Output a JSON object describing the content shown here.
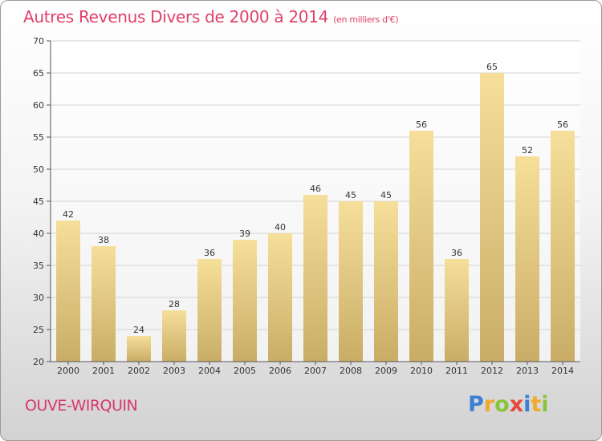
{
  "header": {
    "title": "Autres Revenus Divers de 2000 à 2014",
    "subtitle": "(en milliers d'€)"
  },
  "footer": {
    "location": "OUVE-WIRQUIN",
    "logo_letters": [
      "P",
      "r",
      "o",
      "x",
      "i",
      "t",
      "i"
    ],
    "logo_colors": [
      "#3d7fd0",
      "#f2a82a",
      "#8ac43e",
      "#e8483a",
      "#3d7fd0",
      "#f2a82a",
      "#8ac43e"
    ]
  },
  "chart_data": {
    "type": "bar",
    "title": "Autres Revenus Divers de 2000 à 2014",
    "subtitle": "(en milliers d'€)",
    "categories": [
      "2000",
      "2001",
      "2002",
      "2003",
      "2004",
      "2005",
      "2006",
      "2007",
      "2008",
      "2009",
      "2010",
      "2011",
      "2012",
      "2013",
      "2014"
    ],
    "values": [
      42,
      38,
      24,
      28,
      36,
      39,
      40,
      46,
      45,
      45,
      56,
      36,
      65,
      52,
      56
    ],
    "ylim": [
      20,
      70
    ],
    "yticks": [
      20,
      25,
      30,
      35,
      40,
      45,
      50,
      55,
      60,
      65,
      70
    ],
    "grid": true,
    "bar_color_top": "#f6df9a",
    "bar_color_bottom": "#c9ad66"
  }
}
